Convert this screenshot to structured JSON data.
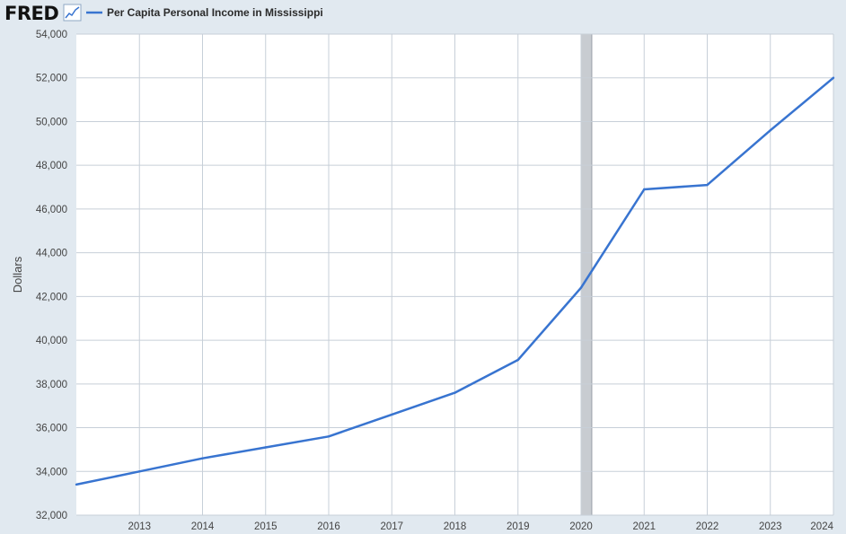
{
  "brand": {
    "logo_text": "FRED",
    "logo_icon": "line-graph-icon"
  },
  "colors": {
    "background": "#e1e9f0",
    "plot_bg": "#ffffff",
    "grid": "#c7cfd8",
    "line": "#3874d0",
    "recession": "#c8ccd1"
  },
  "chart_data": {
    "type": "line",
    "title": "",
    "xlabel": "",
    "ylabel": "Dollars",
    "series": [
      {
        "name": "Per Capita Personal Income in Mississippi",
        "x": [
          2012,
          2013,
          2014,
          2015,
          2016,
          2017,
          2018,
          2019,
          2020,
          2021,
          2022,
          2023,
          2024
        ],
        "values": [
          33400,
          34000,
          34600,
          35100,
          35600,
          36600,
          37600,
          39100,
          42400,
          46900,
          47100,
          49600,
          52000
        ]
      }
    ],
    "xlim": [
      2012,
      2024
    ],
    "ylim": [
      32000,
      54000
    ],
    "x_ticks": [
      2013,
      2014,
      2015,
      2016,
      2017,
      2018,
      2019,
      2020,
      2021,
      2022,
      2023,
      2024
    ],
    "y_ticks": [
      32000,
      34000,
      36000,
      38000,
      40000,
      42000,
      44000,
      46000,
      48000,
      50000,
      52000,
      54000
    ],
    "y_tick_labels": [
      "32,000",
      "34,000",
      "36,000",
      "38,000",
      "40,000",
      "42,000",
      "44,000",
      "46,000",
      "48,000",
      "50,000",
      "52,000",
      "54,000"
    ],
    "recession_shading": [
      [
        2020.0,
        2020.17
      ]
    ],
    "grid": true,
    "legend_position": "top-left"
  }
}
